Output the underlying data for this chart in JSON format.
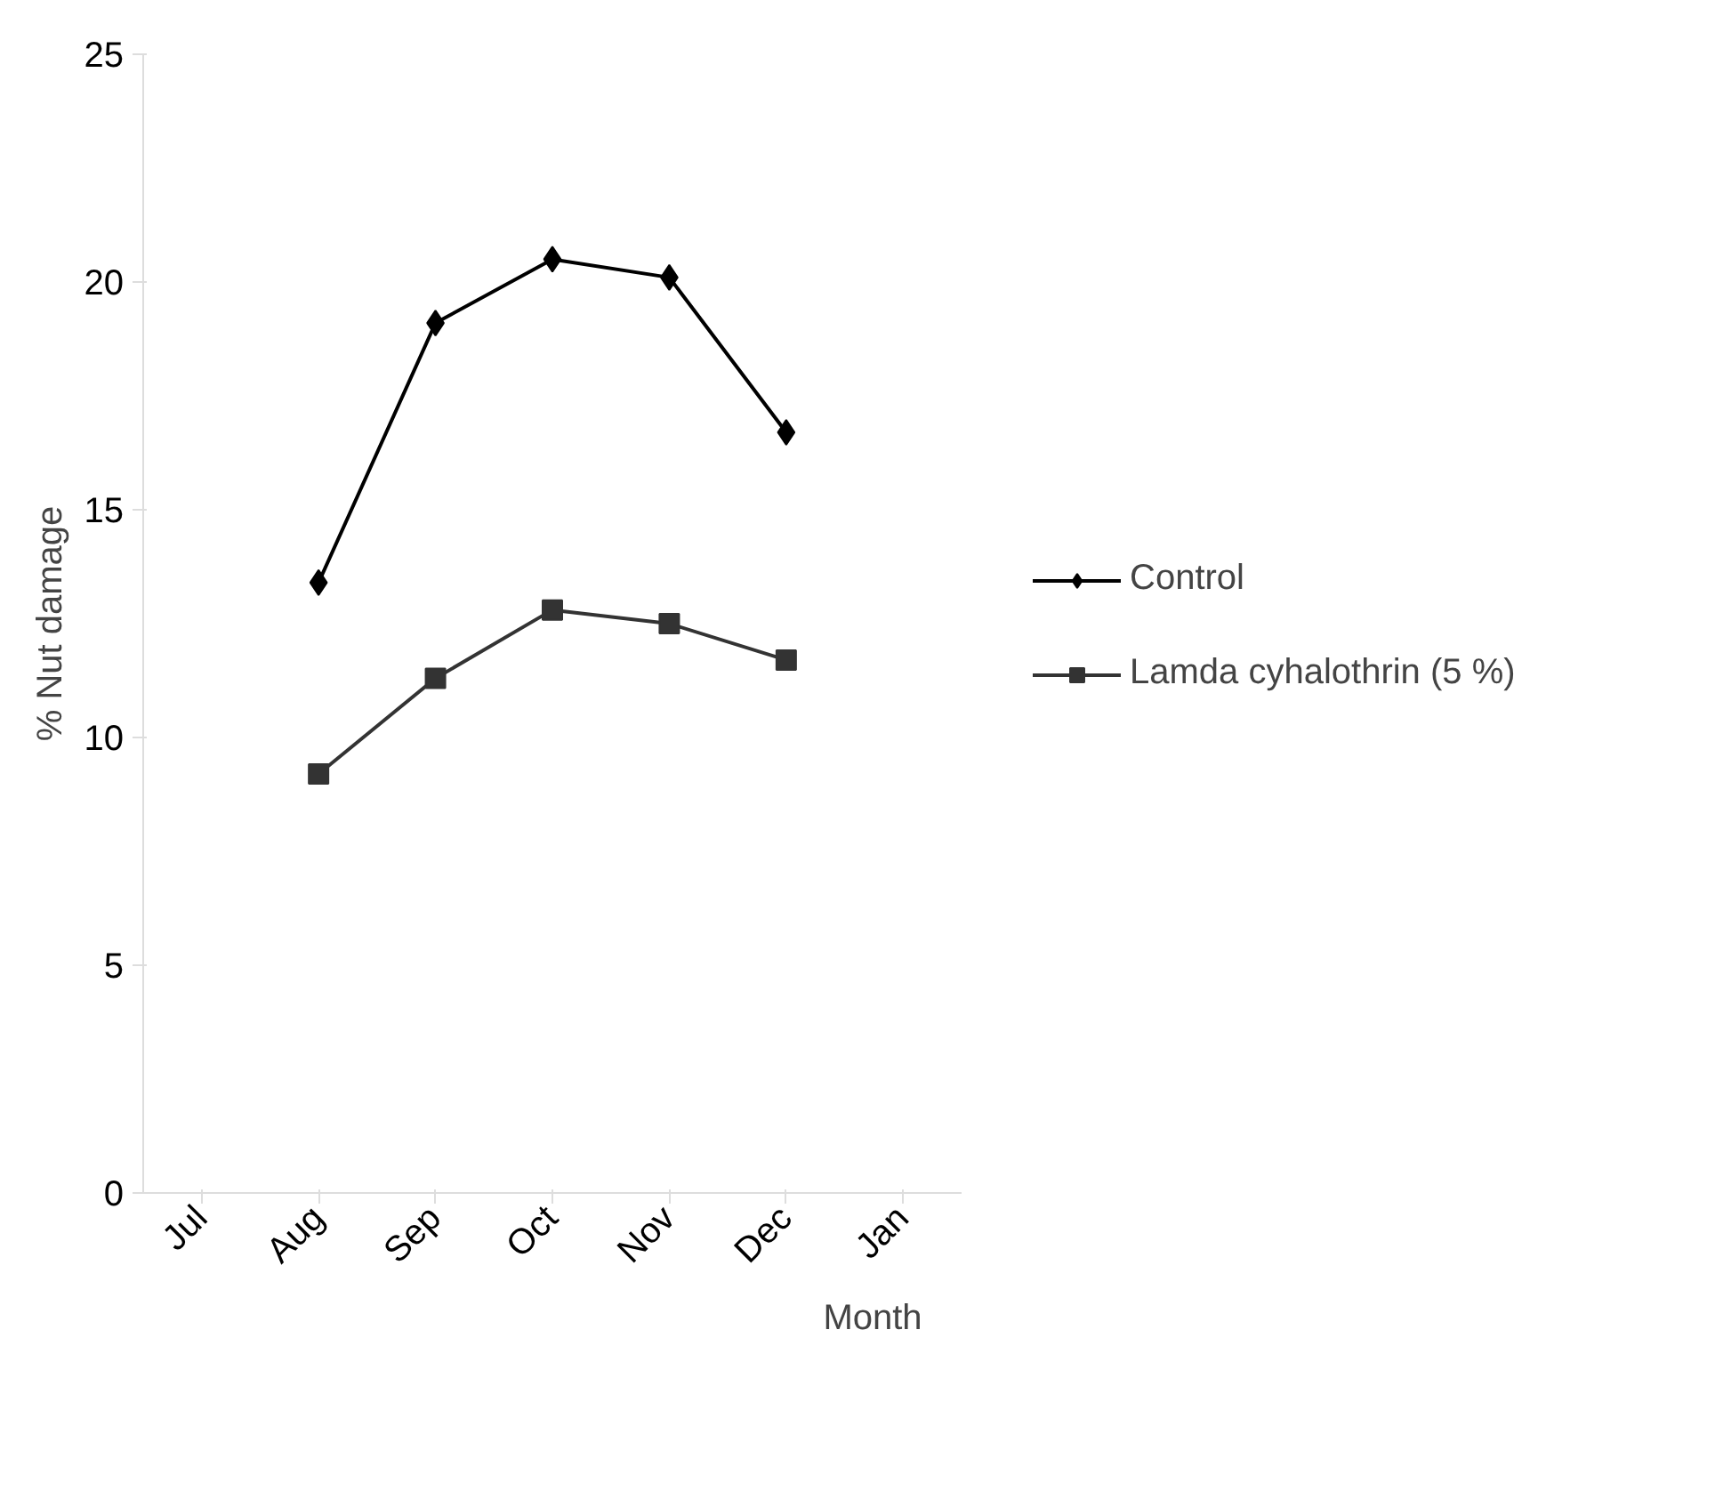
{
  "chart_data": {
    "type": "line",
    "xlabel": "Month",
    "ylabel": "% Nut damage",
    "categories": [
      "Jul",
      "Aug",
      "Sep",
      "Oct",
      "Nov",
      "Dec",
      "Jan"
    ],
    "ylim": [
      0,
      25
    ],
    "yticks": [
      0,
      5,
      10,
      15,
      20,
      25
    ],
    "grid": false,
    "legend": "right",
    "series": [
      {
        "name": "Control",
        "color": "#000000",
        "marker": "diamond",
        "values": [
          null,
          13.4,
          19.1,
          20.5,
          20.1,
          16.7,
          null
        ]
      },
      {
        "name": "Lamda cyhalothrin (5 %)",
        "color": "#333333",
        "marker": "square",
        "values": [
          null,
          9.2,
          11.3,
          12.8,
          12.5,
          11.7,
          null
        ]
      }
    ]
  }
}
